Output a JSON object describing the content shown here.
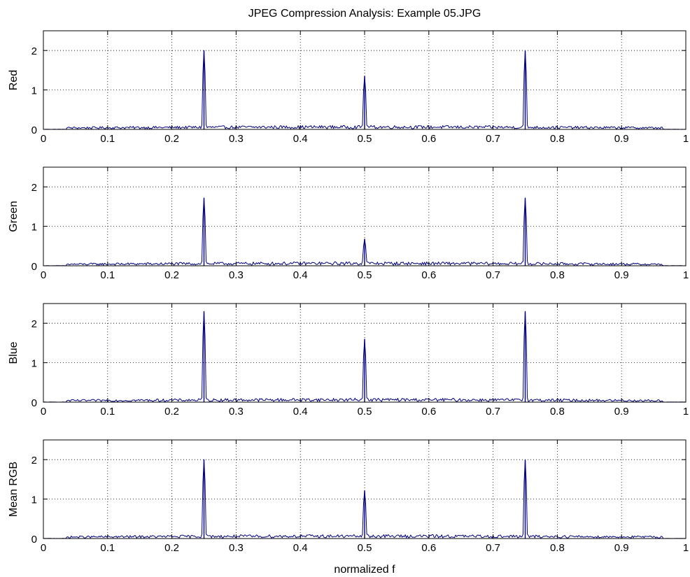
{
  "chart_data": {
    "type": "line",
    "title": "JPEG Compression Analysis: Example 05.JPG",
    "xlabel": "normalized f",
    "xlim": [
      0,
      1
    ],
    "ylim": [
      0,
      2.5
    ],
    "x_ticks": [
      0,
      0.1,
      0.2,
      0.3,
      0.4,
      0.5,
      0.6,
      0.7,
      0.8,
      0.9,
      1
    ],
    "x_tick_labels": [
      "0",
      "0.1",
      "0.2",
      "0.3",
      "0.4",
      "0.5",
      "0.6",
      "0.7",
      "0.8",
      "0.9",
      "1"
    ],
    "y_ticks": [
      0,
      1,
      2
    ],
    "y_tick_labels": [
      "0",
      "1",
      "2"
    ],
    "grid": true,
    "line_color": "#000080",
    "baseline_noise_level": 0.05,
    "panels": [
      {
        "ylabel": "Red",
        "peaks": [
          {
            "x": 0.25,
            "y": 2.0
          },
          {
            "x": 0.5,
            "y": 1.35
          },
          {
            "x": 0.75,
            "y": 2.0
          }
        ]
      },
      {
        "ylabel": "Green",
        "peaks": [
          {
            "x": 0.25,
            "y": 1.72
          },
          {
            "x": 0.5,
            "y": 0.68
          },
          {
            "x": 0.75,
            "y": 1.72
          }
        ]
      },
      {
        "ylabel": "Blue",
        "peaks": [
          {
            "x": 0.25,
            "y": 2.3
          },
          {
            "x": 0.5,
            "y": 1.6
          },
          {
            "x": 0.75,
            "y": 2.3
          }
        ]
      },
      {
        "ylabel": "Mean RGB",
        "peaks": [
          {
            "x": 0.25,
            "y": 2.0
          },
          {
            "x": 0.5,
            "y": 1.22
          },
          {
            "x": 0.75,
            "y": 2.0
          }
        ]
      }
    ]
  }
}
